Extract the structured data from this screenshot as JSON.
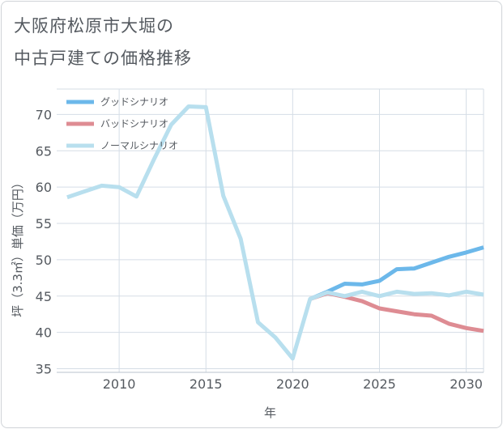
{
  "title_line1": "大阪府松原市大堀の",
  "title_line2": "中古戸建ての価格推移",
  "chart_data": {
    "type": "line",
    "xlabel": "年",
    "ylabel": "坪（3.3㎡）単価（万円）",
    "xlim": [
      2006.4,
      2031
    ],
    "ylim": [
      34.5,
      73.5
    ],
    "x_ticks": [
      2010,
      2015,
      2020,
      2025,
      2030
    ],
    "y_ticks": [
      35,
      40,
      45,
      50,
      55,
      60,
      65,
      70
    ],
    "grid": true,
    "legend_position": "top-left",
    "series": [
      {
        "name": "グッドシナリオ",
        "color": "#6cb8ea",
        "x": [
          2021,
          2022,
          2023,
          2024,
          2025,
          2026,
          2027,
          2028,
          2029,
          2030,
          2031
        ],
        "values": [
          44.6,
          45.6,
          46.7,
          46.6,
          47.1,
          48.7,
          48.8,
          49.6,
          50.4,
          51.0,
          51.7
        ]
      },
      {
        "name": "バッドシナリオ",
        "color": "#de8c93",
        "x": [
          2021,
          2022,
          2023,
          2024,
          2025,
          2026,
          2027,
          2028,
          2029,
          2030,
          2031
        ],
        "values": [
          44.6,
          45.4,
          44.9,
          44.3,
          43.3,
          42.9,
          42.5,
          42.3,
          41.2,
          40.6,
          40.2
        ]
      },
      {
        "name": "ノーマルシナリオ",
        "color": "#b8dfee",
        "x": [
          2007,
          2008,
          2009,
          2010,
          2011,
          2012,
          2013,
          2014,
          2015,
          2016,
          2017,
          2018,
          2019,
          2020,
          2021,
          2022,
          2023,
          2024,
          2025,
          2026,
          2027,
          2028,
          2029,
          2030,
          2031
        ],
        "values": [
          58.6,
          59.4,
          60.2,
          60.0,
          58.7,
          63.8,
          68.6,
          71.1,
          71.0,
          58.8,
          52.9,
          41.4,
          39.3,
          36.4,
          44.6,
          45.5,
          45.0,
          45.6,
          45.0,
          45.6,
          45.3,
          45.4,
          45.1,
          45.6,
          45.2
        ]
      }
    ]
  }
}
